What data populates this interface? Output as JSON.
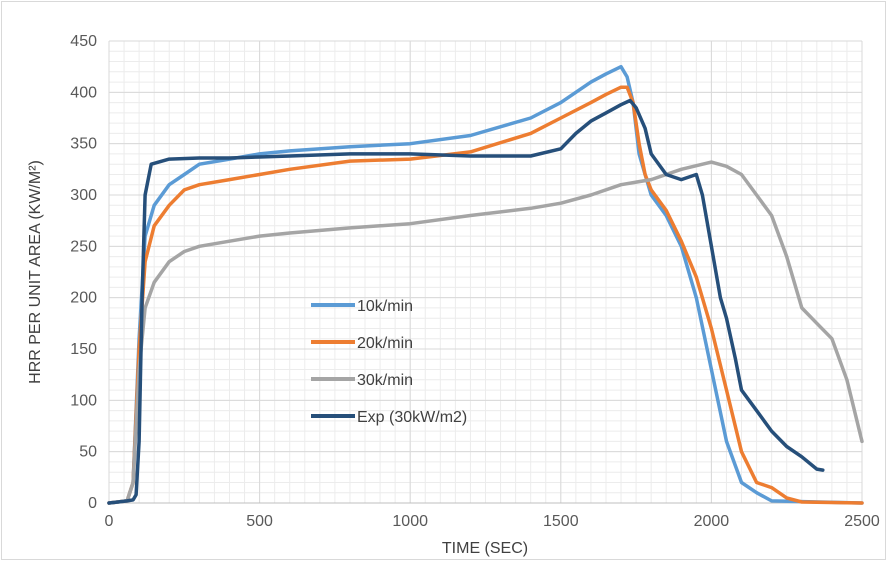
{
  "chart_data": {
    "type": "line",
    "title": "",
    "xlabel": "TIME (SEC)",
    "ylabel": "HRR PER UNIT AREA (KW/M²)",
    "xlim": [
      0,
      2500
    ],
    "ylim": [
      0,
      450
    ],
    "x_ticks": [
      0,
      500,
      1000,
      1500,
      2000,
      2500
    ],
    "y_ticks": [
      0,
      50,
      100,
      150,
      200,
      250,
      300,
      350,
      400,
      450
    ],
    "grid": true,
    "legend_position": "center-left",
    "series": [
      {
        "name": "10k/min",
        "color": "#5b9bd5",
        "x": [
          0,
          60,
          80,
          100,
          120,
          150,
          200,
          250,
          300,
          400,
          500,
          600,
          800,
          1000,
          1200,
          1400,
          1500,
          1600,
          1650,
          1700,
          1720,
          1740,
          1760,
          1780,
          1800,
          1850,
          1900,
          1950,
          2000,
          2050,
          2100,
          2150,
          2200,
          2500
        ],
        "y": [
          0,
          2,
          20,
          160,
          260,
          290,
          310,
          320,
          330,
          335,
          340,
          343,
          347,
          350,
          358,
          375,
          390,
          410,
          418,
          425,
          415,
          390,
          340,
          320,
          300,
          280,
          250,
          200,
          130,
          60,
          20,
          10,
          2,
          0
        ]
      },
      {
        "name": "20k/min",
        "color": "#ed7d31",
        "x": [
          0,
          60,
          80,
          100,
          120,
          150,
          200,
          250,
          300,
          400,
          500,
          600,
          800,
          1000,
          1200,
          1400,
          1500,
          1600,
          1650,
          1700,
          1720,
          1740,
          1760,
          1780,
          1800,
          1850,
          1900,
          1950,
          2000,
          2050,
          2100,
          2150,
          2200,
          2250,
          2300,
          2500
        ],
        "y": [
          0,
          2,
          20,
          150,
          235,
          270,
          290,
          305,
          310,
          315,
          320,
          325,
          333,
          335,
          342,
          360,
          375,
          390,
          398,
          405,
          405,
          390,
          350,
          320,
          305,
          285,
          255,
          220,
          170,
          110,
          50,
          20,
          15,
          5,
          1,
          0
        ]
      },
      {
        "name": "30k/min",
        "color": "#a5a5a5",
        "x": [
          0,
          60,
          80,
          100,
          120,
          150,
          200,
          250,
          300,
          400,
          500,
          600,
          800,
          1000,
          1200,
          1400,
          1500,
          1600,
          1700,
          1800,
          1900,
          2000,
          2050,
          2100,
          2150,
          2200,
          2250,
          2300,
          2350,
          2400,
          2450,
          2500
        ],
        "y": [
          0,
          2,
          20,
          130,
          190,
          215,
          235,
          245,
          250,
          255,
          260,
          263,
          268,
          272,
          280,
          287,
          292,
          300,
          310,
          315,
          325,
          332,
          328,
          320,
          300,
          280,
          240,
          190,
          175,
          160,
          120,
          60
        ]
      },
      {
        "name": "Exp (30kW/m2)",
        "color": "#264f7a",
        "x": [
          0,
          30,
          60,
          80,
          90,
          100,
          110,
          120,
          140,
          200,
          300,
          400,
          500,
          600,
          800,
          1000,
          1200,
          1400,
          1500,
          1550,
          1600,
          1650,
          1700,
          1730,
          1750,
          1780,
          1800,
          1850,
          1900,
          1950,
          1970,
          2000,
          2030,
          2050,
          2080,
          2100,
          2150,
          2200,
          2250,
          2300,
          2350,
          2370
        ],
        "y": [
          0,
          1,
          2,
          3,
          8,
          60,
          200,
          300,
          330,
          335,
          336,
          336,
          337,
          338,
          340,
          340,
          338,
          338,
          345,
          360,
          372,
          380,
          388,
          392,
          385,
          365,
          340,
          320,
          315,
          320,
          300,
          250,
          200,
          180,
          140,
          110,
          90,
          70,
          55,
          45,
          33,
          32
        ]
      }
    ]
  }
}
